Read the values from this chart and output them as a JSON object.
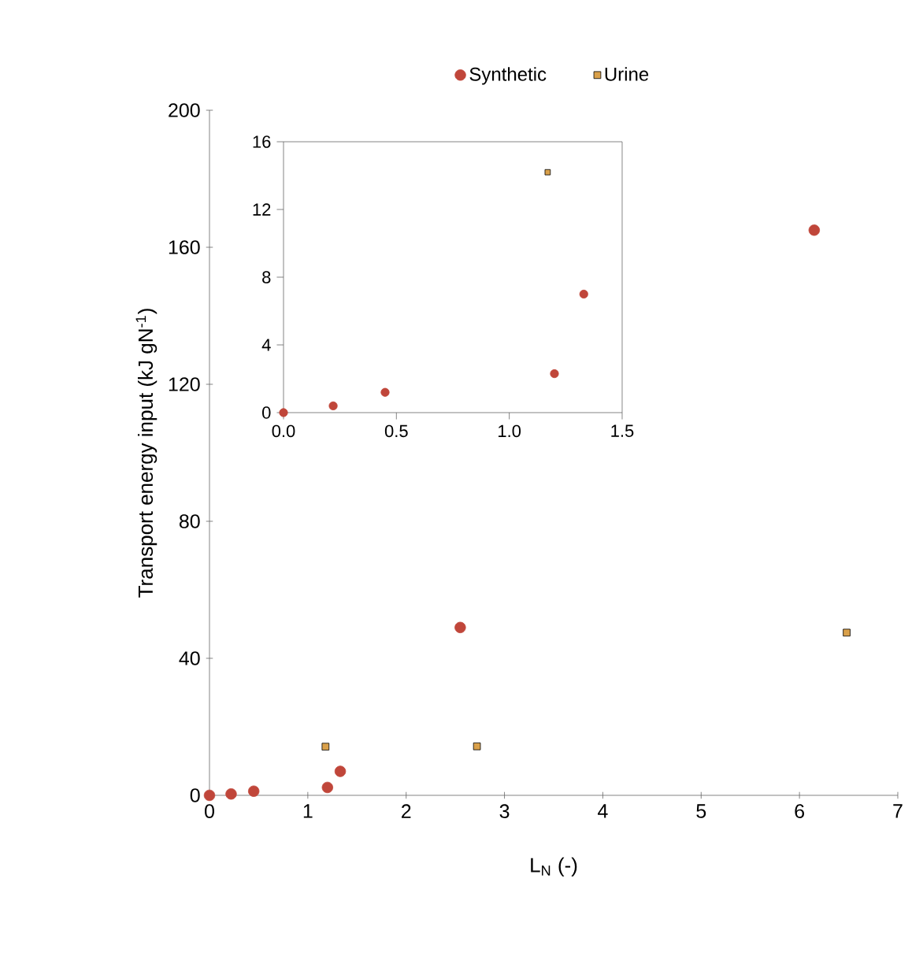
{
  "chart_data": [
    {
      "type": "scatter",
      "xlabel": "L$_{N}$ (-)",
      "ylabel": "Transport energy input (kJ gN$^{-1}$)",
      "xlim": [
        0,
        7
      ],
      "ylim": [
        0,
        200
      ],
      "xticks": [
        0,
        1,
        2,
        3,
        4,
        5,
        6,
        7
      ],
      "yticks": [
        0,
        40,
        80,
        120,
        160,
        200
      ],
      "legend": "top",
      "grid": false,
      "series": [
        {
          "name": "Synthetic",
          "color": "#c0463a",
          "marker": "circle",
          "x": [
            0,
            0.22,
            0.45,
            1.2,
            1.33,
            2.55,
            6.15
          ],
          "values": [
            0,
            0.4,
            1.2,
            2.3,
            7,
            49,
            165
          ]
        },
        {
          "name": "Urine",
          "color": "#d9a04a",
          "marker": "square",
          "x": [
            1.18,
            2.72,
            6.48
          ],
          "values": [
            14.2,
            14.3,
            47.5
          ]
        }
      ]
    },
    {
      "type": "scatter",
      "xlim": [
        0,
        1.5
      ],
      "ylim": [
        0,
        16
      ],
      "xticks": [
        {
          "value": 0,
          "label": "0.0"
        },
        {
          "value": 0.5,
          "label": "0.5"
        },
        {
          "value": 1,
          "label": "1.0"
        },
        {
          "value": 1.5,
          "label": "1.5"
        }
      ],
      "yticks": [
        0,
        4,
        8,
        12,
        16
      ],
      "grid": false,
      "series": [
        {
          "color": "#c0463a",
          "marker": "circle",
          "x": [
            0,
            0.22,
            0.45,
            1.2,
            1.33
          ],
          "values": [
            0,
            0.4,
            1.2,
            2.3,
            7
          ]
        },
        {
          "color": "#d9a04a",
          "marker": "square",
          "x": [
            1.17
          ],
          "values": [
            14.2
          ]
        }
      ]
    }
  ]
}
